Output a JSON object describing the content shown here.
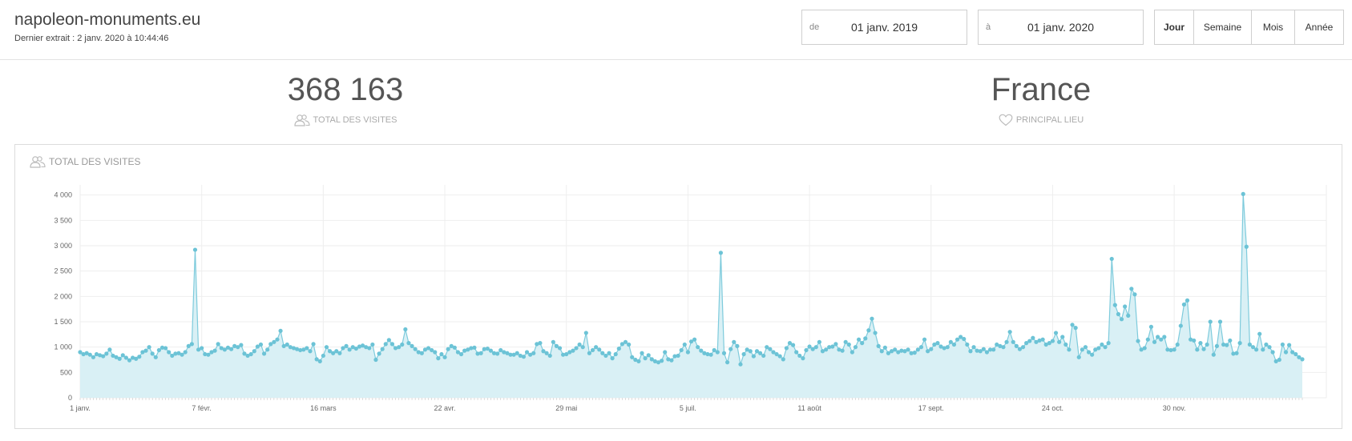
{
  "header": {
    "site_name": "napoleon-monuments.eu",
    "last_extract": "Dernier extrait : 2 janv. 2020 à 10:44:46"
  },
  "date_range": {
    "from_prefix": "de",
    "from_value": "01 janv. 2019",
    "to_prefix": "à",
    "to_value": "01 janv. 2020"
  },
  "period_buttons": [
    {
      "label": "Jour",
      "active": true
    },
    {
      "label": "Semaine",
      "active": false
    },
    {
      "label": "Mois",
      "active": false
    },
    {
      "label": "Année",
      "active": false
    }
  ],
  "kpis": {
    "total_visits_value": "368 163",
    "total_visits_label": "TOTAL DES VISITES",
    "main_place_value": "France",
    "main_place_label": "PRINCIPAL LIEU"
  },
  "chart_panel": {
    "title": "TOTAL DES VISITES"
  },
  "chart_data": {
    "type": "area",
    "title": "TOTAL DES VISITES",
    "xlabel": "",
    "ylabel": "",
    "ylim": [
      0,
      4200
    ],
    "yticks": [
      0,
      500,
      1000,
      1500,
      2000,
      2500,
      3000,
      3500,
      4000
    ],
    "ytick_labels": [
      "0",
      "500",
      "1 000",
      "1 500",
      "2 000",
      "2 500",
      "3 000",
      "3 500",
      "4 000"
    ],
    "xtick_labels": [
      {
        "day": 0,
        "label": "1 janv."
      },
      {
        "day": 37,
        "label": "7 févr."
      },
      {
        "day": 74,
        "label": "16 mars"
      },
      {
        "day": 111,
        "label": "22 avr."
      },
      {
        "day": 148,
        "label": "29 mai"
      },
      {
        "day": 185,
        "label": "5 juil."
      },
      {
        "day": 222,
        "label": "11 août"
      },
      {
        "day": 259,
        "label": "17 sept."
      },
      {
        "day": 296,
        "label": "24 oct."
      },
      {
        "day": 333,
        "label": "30 nov."
      }
    ],
    "grid": true,
    "colors": {
      "line": "#7ecbdc",
      "fill": "#d9f0f5",
      "point": "#6cc3d6",
      "grid": "#eeeeee"
    },
    "x_start": "2019-01-01",
    "series": [
      {
        "name": "TOTAL DES VISITES",
        "values": [
          900,
          860,
          880,
          850,
          800,
          860,
          840,
          820,
          870,
          950,
          830,
          800,
          770,
          840,
          790,
          740,
          790,
          770,
          810,
          900,
          930,
          1000,
          870,
          800,
          940,
          990,
          980,
          900,
          830,
          870,
          880,
          850,
          900,
          1020,
          1060,
          2920,
          950,
          980,
          860,
          850,
          900,
          930,
          1060,
          980,
          950,
          990,
          960,
          1020,
          1000,
          1040,
          870,
          830,
          860,
          920,
          1010,
          1050,
          870,
          950,
          1060,
          1100,
          1150,
          1320,
          1020,
          1050,
          1000,
          980,
          960,
          940,
          950,
          980,
          920,
          1060,
          760,
          720,
          830,
          1000,
          920,
          880,
          920,
          880,
          980,
          1020,
          950,
          1000,
          970,
          1010,
          1030,
          1000,
          980,
          1050,
          750,
          870,
          960,
          1060,
          1140,
          1060,
          980,
          1000,
          1050,
          1350,
          1080,
          1020,
          960,
          900,
          880,
          950,
          980,
          940,
          900,
          780,
          860,
          800,
          960,
          1020,
          990,
          900,
          860,
          930,
          950,
          980,
          990,
          870,
          880,
          960,
          970,
          930,
          880,
          870,
          940,
          900,
          880,
          850,
          850,
          880,
          830,
          810,
          900,
          850,
          880,
          1060,
          1080,
          920,
          880,
          830,
          1100,
          1020,
          980,
          850,
          860,
          900,
          930,
          980,
          1050,
          1000,
          1280,
          880,
          940,
          1000,
          950,
          880,
          830,
          880,
          780,
          860,
          970,
          1060,
          1100,
          1050,
          800,
          750,
          720,
          880,
          780,
          840,
          760,
          720,
          700,
          730,
          900,
          760,
          740,
          820,
          830,
          940,
          1050,
          900,
          1110,
          1150,
          1000,
          930,
          880,
          860,
          850,
          940,
          900,
          2860,
          880,
          700,
          960,
          1100,
          1020,
          660,
          860,
          950,
          920,
          820,
          920,
          880,
          830,
          1000,
          960,
          900,
          860,
          820,
          760,
          980,
          1080,
          1040,
          900,
          830,
          780,
          940,
          1010,
          960,
          1000,
          1100,
          920,
          950,
          1000,
          1010,
          1060,
          950,
          930,
          1100,
          1050,
          900,
          1000,
          1150,
          1080,
          1170,
          1330,
          1560,
          1280,
          1020,
          920,
          990,
          880,
          920,
          950,
          900,
          930,
          920,
          950,
          880,
          890,
          950,
          1000,
          1150,
          920,
          960,
          1050,
          1080,
          1010,
          980,
          1000,
          1100,
          1050,
          1150,
          1200,
          1160,
          1050,
          920,
          1000,
          930,
          920,
          960,
          900,
          950,
          950,
          1050,
          1020,
          1000,
          1100,
          1300,
          1100,
          1020,
          960,
          1000,
          1080,
          1120,
          1180,
          1100,
          1130,
          1150,
          1050,
          1080,
          1120,
          1280,
          1100,
          1200,
          1050,
          950,
          1440,
          1380,
          800,
          950,
          1000,
          900,
          850,
          950,
          980,
          1050,
          1000,
          1080,
          2740,
          1830,
          1650,
          1550,
          1800,
          1620,
          2150,
          2040,
          1120,
          950,
          980,
          1150,
          1400,
          1100,
          1200,
          1150,
          1200,
          950,
          940,
          950,
          1050,
          1420,
          1840,
          1920,
          1150,
          1130,
          950,
          1080,
          960,
          1050,
          1500,
          850,
          1020,
          1500,
          1050,
          1040,
          1130,
          870,
          880,
          1080,
          4020,
          2980,
          1050,
          1000,
          950,
          1260,
          950,
          1050,
          1000,
          900,
          720,
          750,
          1050,
          900,
          1040,
          900,
          860,
          800,
          760
        ]
      }
    ]
  }
}
